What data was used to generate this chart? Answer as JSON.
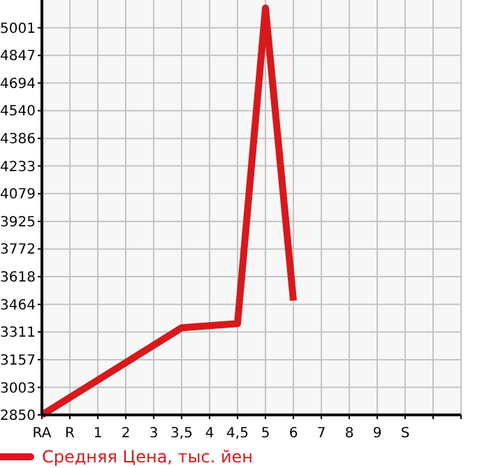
{
  "chart_data": {
    "type": "line",
    "categories": [
      "RA",
      "R",
      "1",
      "2",
      "3",
      "3,5",
      "4",
      "4,5",
      "5",
      "6",
      "7",
      "8",
      "9",
      "S",
      null,
      null
    ],
    "series": [
      {
        "name": "Средняя Цена, тыс. йен",
        "color": "#d7191c",
        "values": [
          2850,
          null,
          null,
          null,
          null,
          3334,
          null,
          3357,
          5110,
          3485,
          null,
          null,
          null,
          null,
          null,
          null
        ]
      }
    ],
    "ylim": [
      2850,
      5155
    ],
    "yticks": [
      2850,
      3003,
      3157,
      3311,
      3464,
      3618,
      3772,
      3925,
      4079,
      4233,
      4386,
      4540,
      4694,
      4847,
      5001
    ],
    "grid": true,
    "legend": "bottom",
    "marker": "none",
    "line_style": "solid"
  }
}
